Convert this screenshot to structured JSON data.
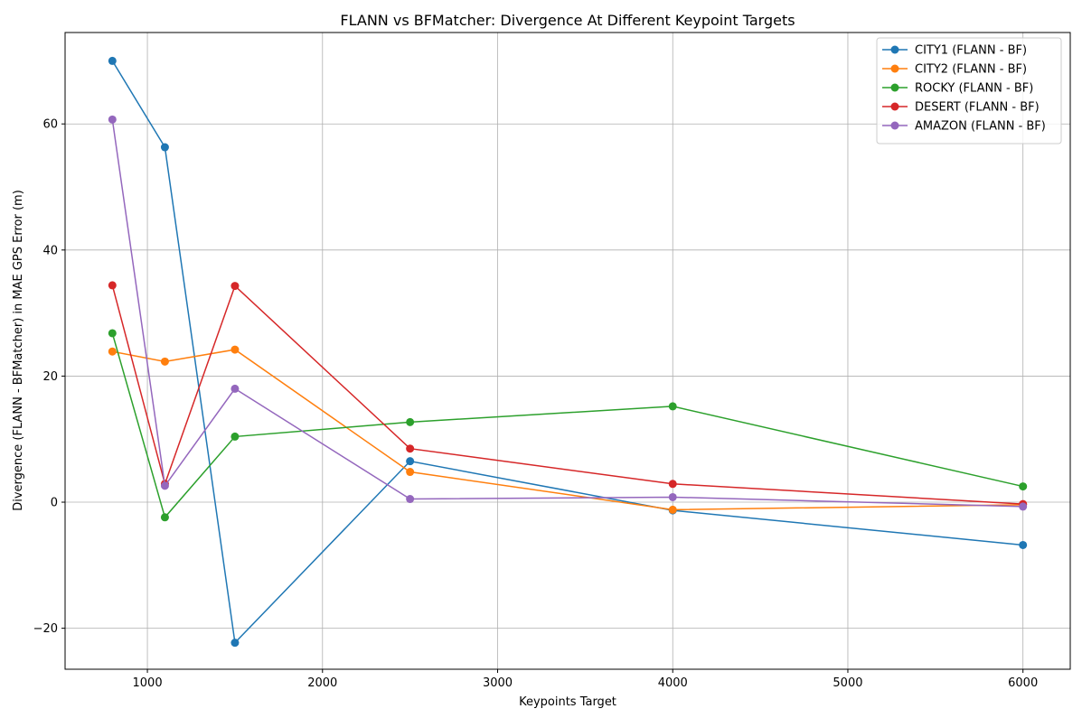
{
  "chart_data": {
    "type": "line",
    "title": "FLANN vs BFMatcher: Divergence At Different Keypoint Targets",
    "xlabel": "Keypoints Target",
    "ylabel": "Divergence (FLANN - BFMatcher) in MAE GPS Error (m)",
    "x": [
      800,
      1100,
      1500,
      2500,
      4000,
      6000
    ],
    "xlim": [
      530,
      6270
    ],
    "ylim": [
      -26.5,
      74.5
    ],
    "xticks": [
      1000,
      2000,
      3000,
      4000,
      5000,
      6000
    ],
    "yticks": [
      -20,
      0,
      20,
      40,
      60
    ],
    "ytick_labels": [
      "−20",
      "0",
      "20",
      "40",
      "60"
    ],
    "grid": true,
    "legend_position": "top-right",
    "series": [
      {
        "name": "CITY1 (FLANN - BF)",
        "color": "#1f77b4",
        "values": [
          70.0,
          56.3,
          -22.3,
          6.5,
          -1.3,
          -6.8
        ]
      },
      {
        "name": "CITY2 (FLANN - BF)",
        "color": "#ff7f0e",
        "values": [
          23.9,
          22.3,
          24.2,
          4.8,
          -1.2,
          -0.4
        ]
      },
      {
        "name": "ROCKY (FLANN - BF)",
        "color": "#2ca02c",
        "values": [
          26.8,
          -2.4,
          10.4,
          12.7,
          15.2,
          2.5
        ]
      },
      {
        "name": "DESERT (FLANN - BF)",
        "color": "#d62728",
        "values": [
          34.4,
          2.9,
          34.3,
          8.5,
          2.9,
          -0.3
        ]
      },
      {
        "name": "AMAZON (FLANN - BF)",
        "color": "#9467bd",
        "values": [
          60.7,
          2.6,
          18.0,
          0.5,
          0.8,
          -0.7
        ]
      }
    ]
  }
}
